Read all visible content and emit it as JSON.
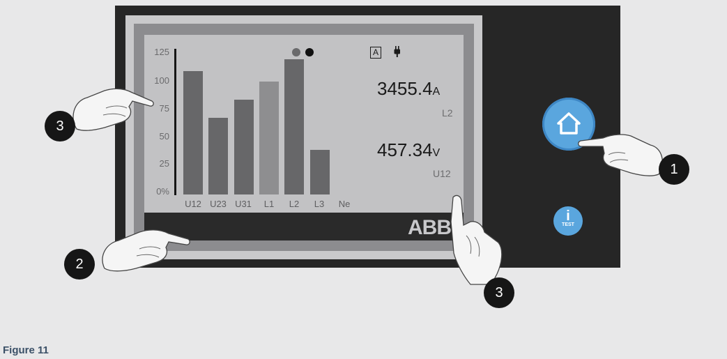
{
  "screen": {
    "y_ticks": [
      "125",
      "100",
      "75",
      "50",
      "25",
      "0%"
    ],
    "categories": [
      "U12",
      "U23",
      "U31",
      "L1",
      "L2",
      "L3",
      "Ne"
    ],
    "mode_icon": "A",
    "plug_icon": "plug-icon",
    "current": {
      "value": "3455.4",
      "unit": "A",
      "phase": "L2"
    },
    "voltage": {
      "value": "457.34",
      "unit": "V",
      "phase": "U12"
    },
    "brand": "ABB"
  },
  "chart_data": {
    "type": "bar",
    "categories": [
      "U12",
      "U23",
      "U31",
      "L1",
      "L2",
      "L3",
      "Ne"
    ],
    "values": [
      108,
      67,
      83,
      99,
      118,
      39,
      0
    ],
    "ylim": [
      0,
      125
    ],
    "colors": [
      "#676769",
      "#676769",
      "#676769",
      "#8e8e90",
      "#676769",
      "#676769",
      "#676769"
    ]
  },
  "buttons": {
    "info_letter": "i",
    "info_label": "TEST"
  },
  "callouts": [
    "1",
    "2",
    "3",
    "3"
  ],
  "caption": "Figure 11"
}
